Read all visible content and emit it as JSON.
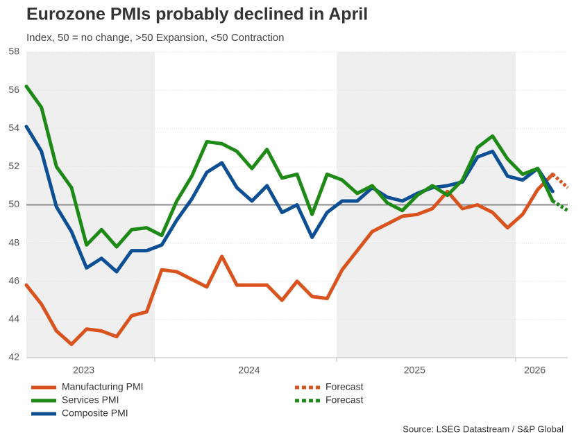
{
  "chart_data": {
    "type": "line",
    "title": "Eurozone PMIs probably declined in April",
    "subtitle": "Index, 50 = no change, >50 Expansion, <50 Contraction",
    "source": "Source: LSEG Datastream / S&P Global",
    "categories": [
      null,
      null,
      null,
      null,
      "2023",
      null,
      null,
      null,
      null,
      null,
      null,
      null,
      null,
      null,
      null,
      "2024",
      null,
      null,
      null,
      null,
      null,
      null,
      null,
      null,
      null,
      null,
      "2025",
      null,
      null,
      null,
      null,
      null,
      null,
      null,
      "2026",
      null,
      null
    ],
    "ylim": [
      42,
      58
    ],
    "yticks": [
      42,
      44,
      46,
      48,
      50,
      52,
      54,
      56,
      58
    ],
    "grid": true,
    "reference_line": 50,
    "series": [
      {
        "name": "Manufacturing PMI",
        "color": "#d9531e",
        "dashed": false,
        "values": [
          45.8,
          44.8,
          43.4,
          42.7,
          43.5,
          43.4,
          43.1,
          44.2,
          44.4,
          46.6,
          46.5,
          46.1,
          45.7,
          47.3,
          45.8,
          45.8,
          45.8,
          45.0,
          46.0,
          45.2,
          45.1,
          46.6,
          47.6,
          48.6,
          49.0,
          49.4,
          49.5,
          49.8,
          50.7,
          49.8,
          50.0,
          49.6,
          48.8,
          49.5,
          50.8,
          51.6,
          null
        ]
      },
      {
        "name": "Services PMI",
        "color": "#1e8a16",
        "dashed": false,
        "values": [
          56.2,
          55.1,
          52.0,
          50.9,
          47.9,
          48.7,
          47.8,
          48.7,
          48.8,
          48.4,
          50.2,
          51.5,
          53.3,
          53.2,
          52.8,
          51.9,
          52.9,
          51.4,
          51.6,
          49.5,
          51.6,
          51.3,
          50.6,
          51.0,
          50.1,
          49.7,
          50.5,
          51.0,
          50.5,
          51.3,
          53.0,
          53.6,
          52.4,
          51.6,
          51.9,
          50.2,
          null
        ]
      },
      {
        "name": "Composite PMI",
        "color": "#0d4f94",
        "dashed": false,
        "values": [
          54.1,
          52.8,
          49.9,
          48.6,
          46.7,
          47.2,
          46.5,
          47.6,
          47.6,
          47.9,
          49.2,
          50.3,
          51.7,
          52.2,
          50.9,
          50.2,
          51.0,
          49.6,
          50.0,
          48.3,
          49.6,
          50.2,
          50.2,
          50.9,
          50.4,
          50.2,
          50.6,
          50.9,
          51.0,
          51.2,
          52.5,
          52.8,
          51.5,
          51.3,
          51.9,
          50.7,
          null
        ]
      },
      {
        "name": "Forecast",
        "color": "#d9531e",
        "dashed": true,
        "values": [
          null,
          null,
          null,
          null,
          null,
          null,
          null,
          null,
          null,
          null,
          null,
          null,
          null,
          null,
          null,
          null,
          null,
          null,
          null,
          null,
          null,
          null,
          null,
          null,
          null,
          null,
          null,
          null,
          null,
          null,
          null,
          null,
          null,
          null,
          null,
          51.6,
          50.9
        ]
      },
      {
        "name": "Forecast",
        "color": "#1e8a16",
        "dashed": true,
        "values": [
          null,
          null,
          null,
          null,
          null,
          null,
          null,
          null,
          null,
          null,
          null,
          null,
          null,
          null,
          null,
          null,
          null,
          null,
          null,
          null,
          null,
          null,
          null,
          null,
          null,
          null,
          null,
          null,
          null,
          null,
          null,
          null,
          null,
          null,
          null,
          50.2,
          49.7
        ]
      }
    ]
  }
}
